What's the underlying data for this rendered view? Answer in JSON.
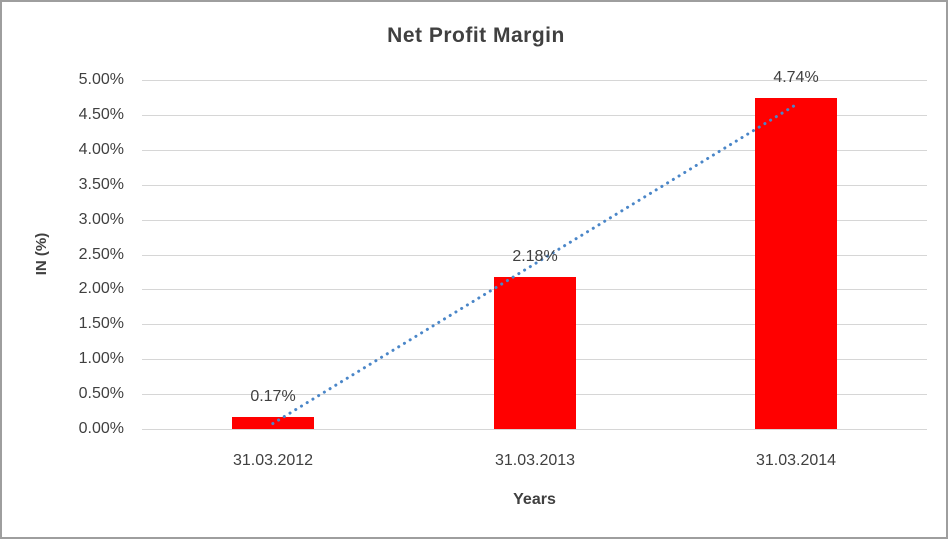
{
  "window": {
    "background_color": "#FFFFFF",
    "frame_border_color": "#9E9E9E"
  },
  "chart_data": {
    "type": "bar",
    "title": "Net Profit Margin",
    "xlabel": "Years",
    "ylabel": "IN (%)",
    "categories": [
      "31.03.2012",
      "31.03.2013",
      "31.03.2014"
    ],
    "values": [
      0.17,
      2.18,
      4.74
    ],
    "data_labels": [
      "0.17%",
      "2.18%",
      "4.74%"
    ],
    "y_tick_values": [
      0,
      0.5,
      1,
      1.5,
      2,
      2.5,
      3,
      3.5,
      4,
      4.5,
      5
    ],
    "y_tick_labels": [
      "0.00%",
      "0.50%",
      "1.00%",
      "1.50%",
      "2.00%",
      "2.50%",
      "3.00%",
      "3.50%",
      "4.00%",
      "4.50%",
      "5.00%"
    ],
    "ylim": [
      0,
      5
    ],
    "grid": true,
    "legend": "none",
    "bar_color": "#FF0000",
    "gridline_color": "#D6D6D6",
    "text_color": "#404040",
    "trendline": {
      "type": "linear",
      "line_style": "dotted",
      "color": "#4A86C8"
    }
  }
}
